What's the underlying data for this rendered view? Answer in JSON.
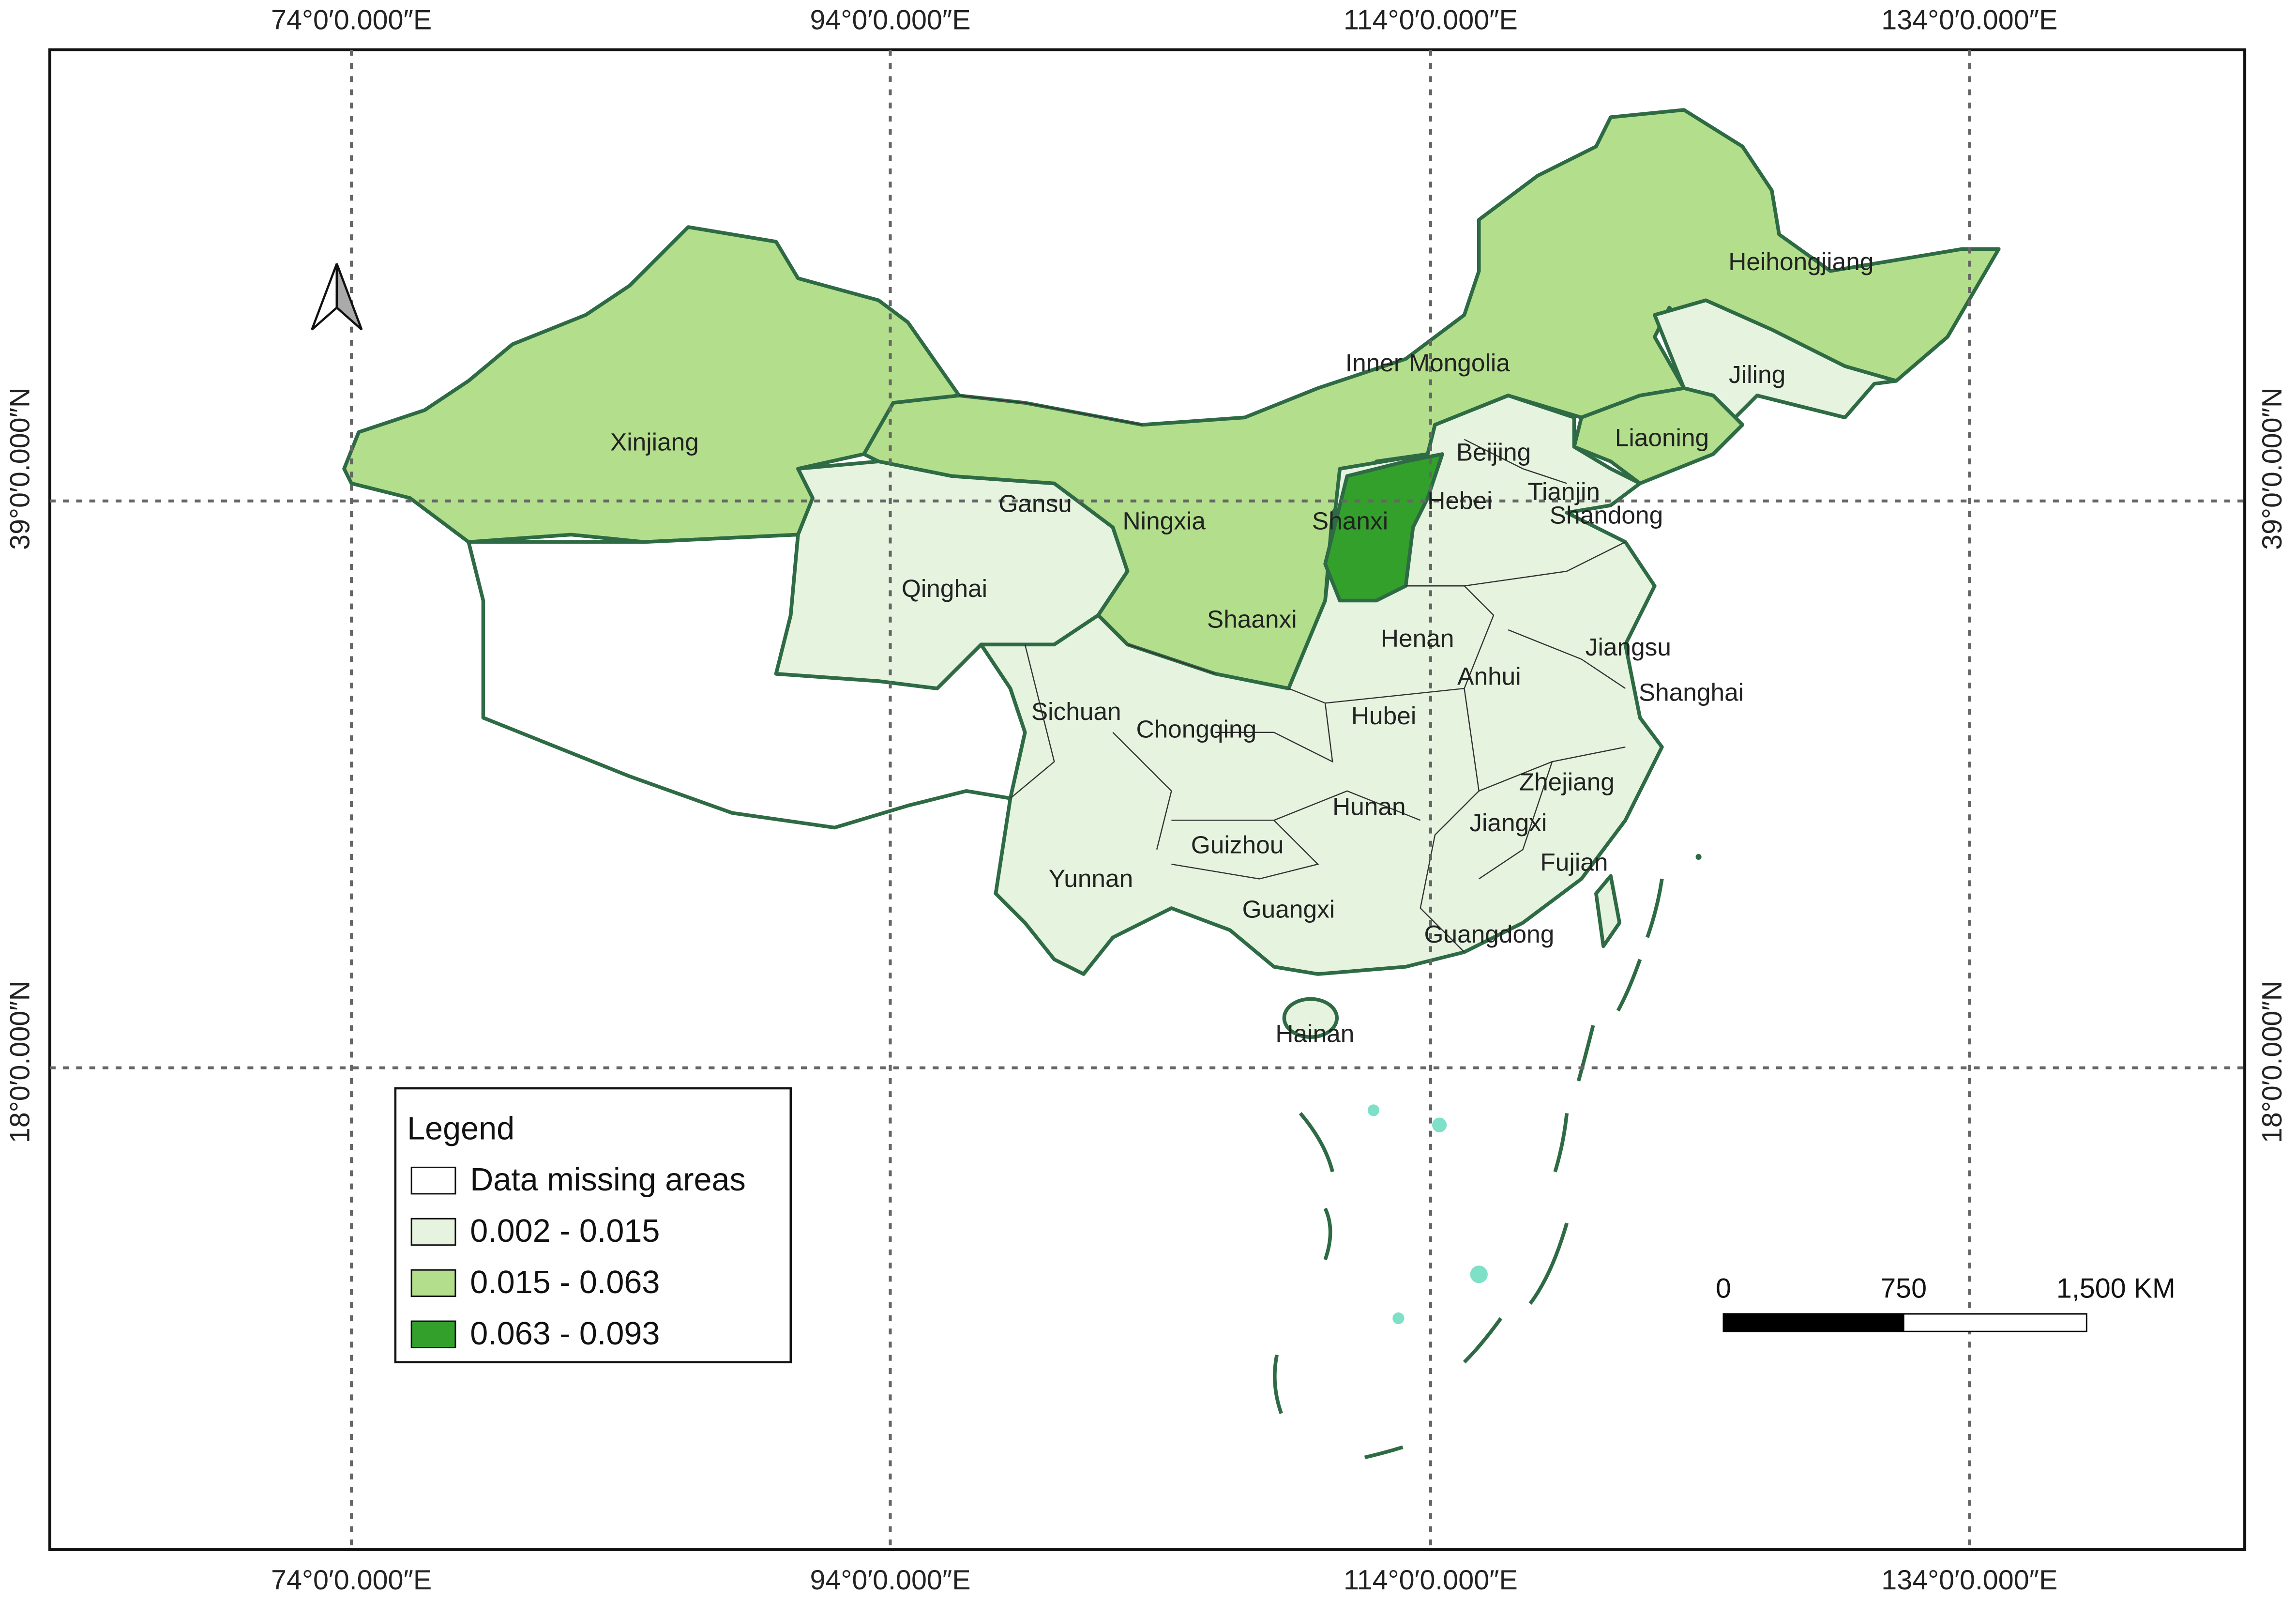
{
  "map": {
    "graticule": {
      "longitudes": [
        "74°0′0.000″E",
        "94°0′0.000″E",
        "114°0′0.000″E",
        "134°0′0.000″E"
      ],
      "latitudes": [
        "39°0′0.000″N",
        "18°0′0.000″N"
      ]
    },
    "provinces": [
      "Xinjiang",
      "Inner Mongolia",
      "Heihongjiang",
      "Jiling",
      "Liaoning",
      "Beijing",
      "Tianjin",
      "Hebei",
      "Shanxi",
      "Gansu",
      "Qinghai",
      "Ningxia",
      "Shaanxi",
      "Shandong",
      "Henan",
      "Jiangsu",
      "Anhui",
      "Shanghai",
      "Sichuan",
      "Chongqing",
      "Hubei",
      "Zhejiang",
      "Hunan",
      "Jiangxi",
      "Guizhou",
      "Fujian",
      "Yunnan",
      "Guangxi",
      "Guangdong",
      "Hainan"
    ],
    "legend": {
      "title": "Legend",
      "items": [
        "Data missing areas",
        "0.002 - 0.015",
        "0.015 - 0.063",
        "0.063 - 0.093"
      ]
    },
    "scale_bar": {
      "labels": [
        "0",
        "750",
        "1,500 KM"
      ]
    }
  }
}
